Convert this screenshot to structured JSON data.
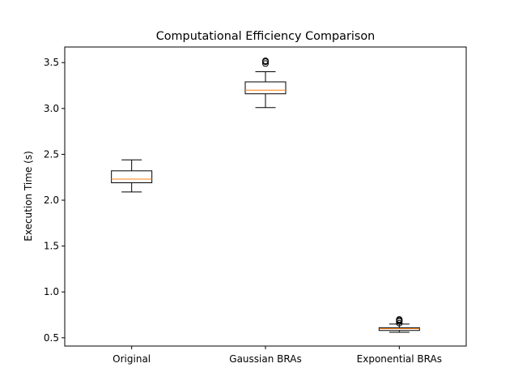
{
  "chart_data": {
    "type": "box",
    "title": "Computational Efficiency Comparison",
    "xlabel": "",
    "ylabel": "Execution Time (s)",
    "ylim": [
      0.41,
      3.67
    ],
    "yticks": [
      0.5,
      1.0,
      1.5,
      2.0,
      2.5,
      3.0,
      3.5
    ],
    "ytick_labels": [
      "0.5",
      "1.0",
      "1.5",
      "2.0",
      "2.5",
      "3.0",
      "3.5"
    ],
    "grid": false,
    "median_color": "#ff7f0e",
    "box_color": "#000000",
    "categories": [
      "Original",
      "Gaussian BRAs",
      "Exponential BRAs"
    ],
    "boxes": [
      {
        "whisker_low": 2.09,
        "q1": 2.19,
        "median": 2.23,
        "q3": 2.32,
        "whisker_high": 2.44,
        "outliers": []
      },
      {
        "whisker_low": 3.01,
        "q1": 3.16,
        "median": 3.2,
        "q3": 3.29,
        "whisker_high": 3.4,
        "outliers": [
          3.49,
          3.51,
          3.52
        ]
      },
      {
        "whisker_low": 0.56,
        "q1": 0.58,
        "median": 0.6,
        "q3": 0.61,
        "whisker_high": 0.65,
        "outliers": [
          0.66,
          0.68,
          0.69,
          0.7
        ]
      }
    ]
  }
}
